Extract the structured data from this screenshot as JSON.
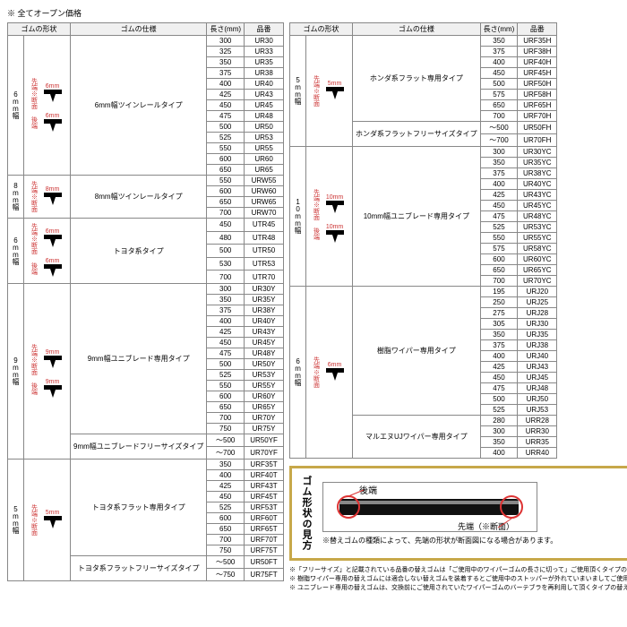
{
  "topNote": "※ 全てオープン価格",
  "headers": {
    "shape": "ゴムの形状",
    "spec": "ゴムの仕様",
    "length": "長さ(mm)",
    "code": "品番"
  },
  "legend": {
    "title": "ゴム形状の見方",
    "rear": "後端",
    "front": "先端（※断面）",
    "caption": "※替えゴムの種類によって、先端の形状が断面図になる場合があります。"
  },
  "footnotes": [
    "※「フリーサイズ」と記載されている品番の替えゴムは「ご使用中のワイパーゴムの長さに切って」ご使用頂くタイプの替えゴムです。",
    "※ 樹脂ワイパー専用の替えゴムには適合しない替えゴムを装着するとご使用中のストッパーが外れていまいましてご使用の替えゴムです。",
    "※ ユニブレード専用の替えゴムは、交換前にご使用されていたワイパーゴムのバーテブラを再利用して頂くタイプの替えゴムです。"
  ],
  "shapeLabels": {
    "front": "先端※断面",
    "rear": "後端"
  },
  "leftGroups": [
    {
      "widthLabel": "6mm幅",
      "dim": "6mm",
      "spec": "6mm幅ツインレールタイプ",
      "showShape": true,
      "twoShapes": true,
      "rows": [
        {
          "len": "300",
          "code": "UR30"
        },
        {
          "len": "325",
          "code": "UR33"
        },
        {
          "len": "350",
          "code": "UR35"
        },
        {
          "len": "375",
          "code": "UR38"
        },
        {
          "len": "400",
          "code": "UR40"
        },
        {
          "len": "425",
          "code": "UR43"
        },
        {
          "len": "450",
          "code": "UR45"
        },
        {
          "len": "475",
          "code": "UR48"
        },
        {
          "len": "500",
          "code": "UR50"
        },
        {
          "len": "525",
          "code": "UR53"
        },
        {
          "len": "550",
          "code": "UR55"
        },
        {
          "len": "600",
          "code": "UR60"
        },
        {
          "len": "650",
          "code": "UR65"
        }
      ]
    },
    {
      "widthLabel": "8mm幅",
      "dim": "8mm",
      "spec": "8mm幅ツインレールタイプ",
      "showShape": true,
      "twoShapes": false,
      "rows": [
        {
          "len": "550",
          "code": "URW55"
        },
        {
          "len": "600",
          "code": "URW60"
        },
        {
          "len": "650",
          "code": "URW65"
        },
        {
          "len": "700",
          "code": "URW70"
        }
      ]
    },
    {
      "widthLabel": "6mm幅",
      "dim": "6mm",
      "spec": "トヨタ系タイプ",
      "showShape": true,
      "twoShapes": true,
      "rows": [
        {
          "len": "450",
          "code": "UTR45"
        },
        {
          "len": "480",
          "code": "UTR48"
        },
        {
          "len": "500",
          "code": "UTR50"
        },
        {
          "len": "530",
          "code": "UTR53"
        },
        {
          "len": "700",
          "code": "UTR70"
        }
      ]
    },
    {
      "widthLabel": "9mm幅",
      "dim": "9mm",
      "spec": "9mm幅ユニブレード専用タイプ",
      "showShape": true,
      "twoShapes": true,
      "rows": [
        {
          "len": "300",
          "code": "UR30Y"
        },
        {
          "len": "350",
          "code": "UR35Y"
        },
        {
          "len": "375",
          "code": "UR38Y"
        },
        {
          "len": "400",
          "code": "UR40Y"
        },
        {
          "len": "425",
          "code": "UR43Y"
        },
        {
          "len": "450",
          "code": "UR45Y"
        },
        {
          "len": "475",
          "code": "UR48Y"
        },
        {
          "len": "500",
          "code": "UR50Y"
        },
        {
          "len": "525",
          "code": "UR53Y"
        },
        {
          "len": "550",
          "code": "UR55Y"
        },
        {
          "len": "600",
          "code": "UR60Y"
        },
        {
          "len": "650",
          "code": "UR65Y"
        },
        {
          "len": "700",
          "code": "UR70Y"
        },
        {
          "len": "750",
          "code": "UR75Y"
        }
      ],
      "extra": {
        "spec": "9mm幅ユニブレードフリーサイズタイプ",
        "rows": [
          {
            "len": "～500",
            "code": "UR50YF"
          },
          {
            "len": "～700",
            "code": "UR70YF"
          }
        ]
      }
    },
    {
      "widthLabel": "5mm幅",
      "dim": "5mm",
      "spec": "トヨタ系フラット専用タイプ",
      "showShape": true,
      "twoShapes": false,
      "rows": [
        {
          "len": "350",
          "code": "URF35T"
        },
        {
          "len": "400",
          "code": "URF40T"
        },
        {
          "len": "425",
          "code": "URF43T"
        },
        {
          "len": "450",
          "code": "URF45T"
        },
        {
          "len": "525",
          "code": "URF53T"
        },
        {
          "len": "600",
          "code": "URF60T"
        },
        {
          "len": "650",
          "code": "URF65T"
        },
        {
          "len": "700",
          "code": "URF70T"
        },
        {
          "len": "750",
          "code": "URF75T"
        }
      ],
      "extra": {
        "spec": "トヨタ系フラットフリーサイズタイプ",
        "rows": [
          {
            "len": "～500",
            "code": "UR50FT"
          },
          {
            "len": "～750",
            "code": "UR75FT"
          }
        ]
      }
    }
  ],
  "rightGroups": [
    {
      "widthLabel": "5mm幅",
      "dim": "5mm",
      "spec": "ホンダ系フラット専用タイプ",
      "showShape": true,
      "twoShapes": false,
      "rows": [
        {
          "len": "350",
          "code": "URF35H"
        },
        {
          "len": "375",
          "code": "URF38H"
        },
        {
          "len": "400",
          "code": "URF40H"
        },
        {
          "len": "450",
          "code": "URF45H"
        },
        {
          "len": "500",
          "code": "URF50H"
        },
        {
          "len": "575",
          "code": "URF58H"
        },
        {
          "len": "650",
          "code": "URF65H"
        },
        {
          "len": "700",
          "code": "URF70H"
        }
      ],
      "extra": {
        "spec": "ホンダ系フラットフリーサイズタイプ",
        "rows": [
          {
            "len": "～500",
            "code": "UR50FH"
          },
          {
            "len": "～700",
            "code": "UR70FH"
          }
        ]
      }
    },
    {
      "widthLabel": "10mm幅",
      "dim": "10mm",
      "spec": "10mm幅ユニブレード専用タイプ",
      "showShape": true,
      "twoShapes": true,
      "rows": [
        {
          "len": "300",
          "code": "UR30YC"
        },
        {
          "len": "350",
          "code": "UR35YC"
        },
        {
          "len": "375",
          "code": "UR38YC"
        },
        {
          "len": "400",
          "code": "UR40YC"
        },
        {
          "len": "425",
          "code": "UR43YC"
        },
        {
          "len": "450",
          "code": "UR45YC"
        },
        {
          "len": "475",
          "code": "UR48YC"
        },
        {
          "len": "525",
          "code": "UR53YC"
        },
        {
          "len": "550",
          "code": "UR55YC"
        },
        {
          "len": "575",
          "code": "UR58YC"
        },
        {
          "len": "600",
          "code": "UR60YC"
        },
        {
          "len": "650",
          "code": "UR65YC"
        },
        {
          "len": "700",
          "code": "UR70YC"
        }
      ]
    },
    {
      "widthLabel": "6mm幅",
      "dim": "6mm",
      "spec": "樹脂ワイパー専用タイプ",
      "showShape": true,
      "twoShapes": false,
      "rows": [
        {
          "len": "195",
          "code": "URJ20"
        },
        {
          "len": "250",
          "code": "URJ25"
        },
        {
          "len": "275",
          "code": "URJ28"
        },
        {
          "len": "305",
          "code": "URJ30"
        },
        {
          "len": "350",
          "code": "URJ35"
        },
        {
          "len": "375",
          "code": "URJ38"
        },
        {
          "len": "400",
          "code": "URJ40"
        },
        {
          "len": "425",
          "code": "URJ43"
        },
        {
          "len": "450",
          "code": "URJ45"
        },
        {
          "len": "475",
          "code": "URJ48"
        },
        {
          "len": "500",
          "code": "URJ50"
        },
        {
          "len": "525",
          "code": "URJ53"
        }
      ],
      "extra": {
        "spec": "マルエヌUJワイパー専用タイプ",
        "rows": [
          {
            "len": "280",
            "code": "URR28"
          },
          {
            "len": "300",
            "code": "URR30"
          },
          {
            "len": "350",
            "code": "URR35"
          },
          {
            "len": "400",
            "code": "URR40"
          }
        ]
      }
    }
  ]
}
